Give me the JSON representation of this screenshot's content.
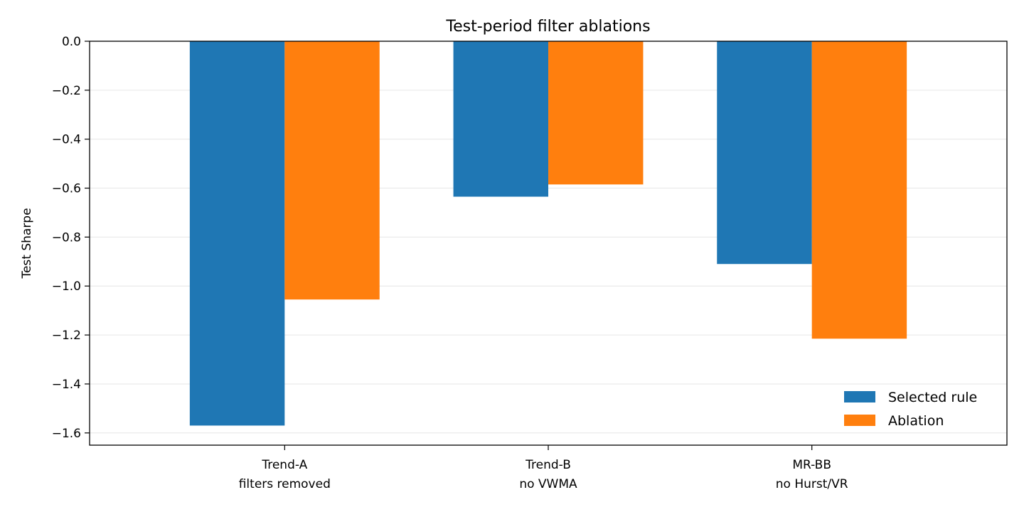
{
  "chart_data": {
    "type": "bar",
    "title": "Test-period filter ablations",
    "xlabel": "",
    "ylabel": "Test Sharpe",
    "ylim": [
      -1.65,
      0.0
    ],
    "yticks": [
      {
        "value": 0.0,
        "label": "0.0"
      },
      {
        "value": -0.2,
        "label": "−0.2"
      },
      {
        "value": -0.4,
        "label": "−0.4"
      },
      {
        "value": -0.6,
        "label": "−0.6"
      },
      {
        "value": -0.8,
        "label": "−0.8"
      },
      {
        "value": -1.0,
        "label": "−1.0"
      },
      {
        "value": -1.2,
        "label": "−1.2"
      },
      {
        "value": -1.4,
        "label": "−1.4"
      },
      {
        "value": -1.6,
        "label": "−1.6"
      }
    ],
    "categories": [
      {
        "line1": "Trend-A",
        "line2": "filters removed"
      },
      {
        "line1": "Trend-B",
        "line2": "no VWMA"
      },
      {
        "line1": "MR-BB",
        "line2": "no Hurst/VR"
      }
    ],
    "series": [
      {
        "name": "Selected rule",
        "color": "#1f77b4",
        "values": [
          -1.57,
          -0.635,
          -0.91
        ]
      },
      {
        "name": "Ablation",
        "color": "#ff7f0e",
        "values": [
          -1.055,
          -0.585,
          -1.215
        ]
      }
    ],
    "grid": "y",
    "legend_position": "lower-right"
  }
}
